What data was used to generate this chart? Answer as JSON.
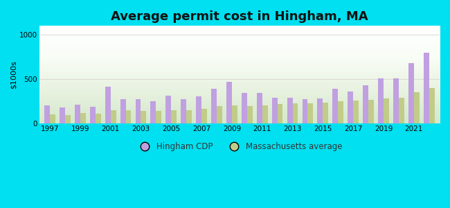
{
  "title": "Average permit cost in Hingham, MA",
  "ylabel": "$1000s",
  "background_outer": "#00e0f0",
  "years": [
    1997,
    1998,
    1999,
    2000,
    2001,
    2002,
    2003,
    2004,
    2005,
    2006,
    2007,
    2008,
    2009,
    2010,
    2011,
    2012,
    2013,
    2014,
    2015,
    2016,
    2017,
    2018,
    2019,
    2020,
    2021,
    2022
  ],
  "hingham": [
    200,
    175,
    210,
    185,
    410,
    270,
    270,
    245,
    310,
    275,
    300,
    390,
    470,
    340,
    340,
    290,
    285,
    270,
    280,
    390,
    360,
    430,
    510,
    510,
    680,
    800
  ],
  "ma_avg": [
    100,
    95,
    115,
    110,
    145,
    145,
    140,
    140,
    145,
    150,
    160,
    190,
    200,
    195,
    205,
    220,
    225,
    225,
    230,
    250,
    255,
    265,
    280,
    285,
    350,
    400
  ],
  "hingham_color": "#c0a0e0",
  "ma_color": "#c0cc88",
  "ylim": [
    0,
    1100
  ],
  "yticks": [
    0,
    500,
    1000
  ],
  "legend_hingham": "Hingham CDP",
  "legend_ma": "Massachusetts average",
  "title_fontsize": 13,
  "axis_label_fontsize": 8,
  "tick_fontsize": 7.5
}
